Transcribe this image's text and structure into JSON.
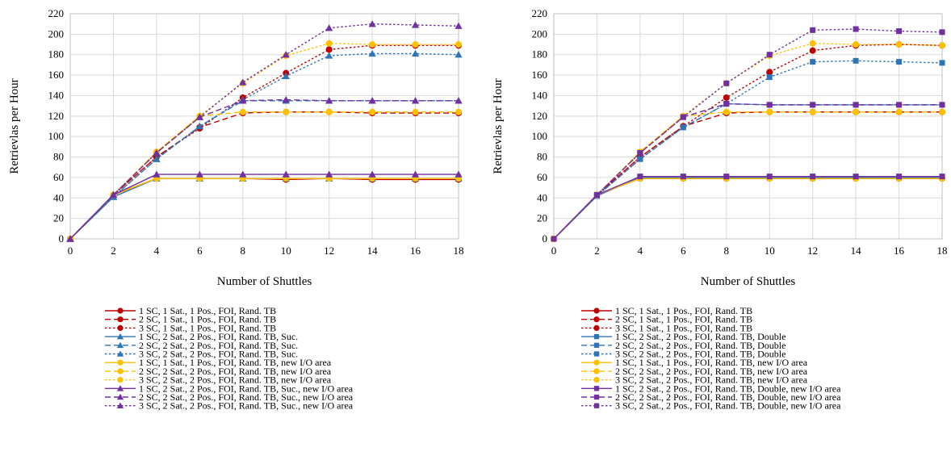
{
  "chart_data": [
    {
      "type": "line",
      "title": "",
      "xlabel": "Number of Shuttles",
      "ylabel": "Retrievlas per Hour",
      "xlim": [
        0,
        18
      ],
      "ylim": [
        0,
        220
      ],
      "x": [
        0,
        2,
        4,
        6,
        8,
        10,
        12,
        14,
        16,
        18
      ],
      "xticks": [
        "0",
        "2",
        "4",
        "6",
        "8",
        "10",
        "12",
        "14",
        "16",
        "18"
      ],
      "yticks": [
        "0",
        "20",
        "40",
        "60",
        "80",
        "100",
        "120",
        "140",
        "160",
        "180",
        "200",
        "220"
      ],
      "grid": true,
      "legend_position": "bottom",
      "series": [
        {
          "name": "1 SC, 1 Sat., 1 Pos., FOI, Rand. TB",
          "color": "#c00000",
          "dash": "solid",
          "marker": "circle",
          "values": [
            0,
            43,
            59,
            59,
            59,
            58,
            59,
            58,
            58,
            58
          ]
        },
        {
          "name": "2 SC, 1 Sat., 1 Pos., FOI, Rand. TB",
          "color": "#c00000",
          "dash": "dashed",
          "marker": "circle",
          "values": [
            0,
            43,
            80,
            109,
            123,
            124,
            124,
            123,
            123,
            123
          ]
        },
        {
          "name": "3 SC, 1 Sat., 1 Pos., FOI, Rand. TB",
          "color": "#c00000",
          "dash": "dotted",
          "marker": "circle",
          "values": [
            0,
            43,
            80,
            108,
            138,
            162,
            185,
            189,
            189,
            189
          ]
        },
        {
          "name": "1 SC, 2 Sat., 2 Pos., FOI, Rand. TB, Suc.",
          "color": "#2e75b6",
          "dash": "solid",
          "marker": "triangle",
          "values": [
            0,
            41,
            59,
            59,
            59,
            59,
            59,
            59,
            59,
            59
          ]
        },
        {
          "name": "2 SC, 2 Sat., 2 Pos., FOI, Rand. TB, Suc.",
          "color": "#2e75b6",
          "dash": "dashed",
          "marker": "triangle",
          "values": [
            0,
            41,
            78,
            110,
            135,
            135,
            135,
            135,
            135,
            135
          ]
        },
        {
          "name": "3 SC, 2 Sat., 2 Pos., FOI, Rand. TB, Suc.",
          "color": "#2e75b6",
          "dash": "dotted",
          "marker": "triangle",
          "values": [
            0,
            41,
            78,
            110,
            136,
            159,
            179,
            181,
            181,
            180
          ]
        },
        {
          "name": "1 SC, 1 Sat., 1 Pos., FOI, Rand. TB, new I/O area",
          "color": "#ffc000",
          "dash": "solid",
          "marker": "circle",
          "values": [
            0,
            43,
            59,
            59,
            59,
            59,
            59,
            59,
            59,
            59
          ]
        },
        {
          "name": "2 SC, 2 Sat., 2 Pos., FOI, Rand. TB, new I/O area",
          "color": "#ffc000",
          "dash": "dashed",
          "marker": "circle",
          "values": [
            0,
            43,
            85,
            120,
            124,
            124,
            124,
            124,
            124,
            124
          ]
        },
        {
          "name": "3 SC, 2 Sat., 2 Pos., FOI, Rand. TB, new I/O area",
          "color": "#ffc000",
          "dash": "dotted",
          "marker": "circle",
          "values": [
            0,
            43,
            85,
            120,
            152,
            179,
            191,
            190,
            190,
            190
          ]
        },
        {
          "name": "1 SC, 2 Sat., 2 Pos., FOI, Rand. TB, Suc., new I/O area",
          "color": "#7030a0",
          "dash": "solid",
          "marker": "triangle",
          "values": [
            0,
            43,
            63,
            63,
            63,
            63,
            63,
            63,
            63,
            63
          ]
        },
        {
          "name": "2 SC, 2 Sat., 2 Pos., FOI, Rand. TB, Suc., new I/O area",
          "color": "#7030a0",
          "dash": "dashed",
          "marker": "triangle",
          "values": [
            0,
            43,
            84,
            119,
            135,
            136,
            135,
            135,
            135,
            135
          ]
        },
        {
          "name": "3 SC, 2 Sat., 2 Pos., FOI, Rand. TB, Suc., new I/O area",
          "color": "#7030a0",
          "dash": "dotted",
          "marker": "triangle",
          "values": [
            0,
            43,
            84,
            119,
            153,
            180,
            206,
            210,
            209,
            208
          ]
        }
      ]
    },
    {
      "type": "line",
      "title": "",
      "xlabel": "Number of Shuttles",
      "ylabel": "Retrievlas per Hour",
      "xlim": [
        0,
        18
      ],
      "ylim": [
        0,
        220
      ],
      "x": [
        0,
        2,
        4,
        6,
        8,
        10,
        12,
        14,
        16,
        18
      ],
      "xticks": [
        "0",
        "2",
        "4",
        "6",
        "8",
        "10",
        "12",
        "14",
        "16",
        "18"
      ],
      "yticks": [
        "0",
        "20",
        "40",
        "60",
        "80",
        "100",
        "120",
        "140",
        "160",
        "180",
        "200",
        "220"
      ],
      "grid": true,
      "legend_position": "bottom",
      "series": [
        {
          "name": "1 SC, 1 Sat., 1 Pos., FOI, Rand. TB",
          "color": "#c00000",
          "dash": "solid",
          "marker": "circle",
          "values": [
            0,
            43,
            59,
            59,
            59,
            59,
            59,
            59,
            59,
            59
          ]
        },
        {
          "name": "2 SC, 1 Sat., 1 Pos., FOI, Rand. TB",
          "color": "#c00000",
          "dash": "dashed",
          "marker": "circle",
          "values": [
            0,
            43,
            80,
            110,
            123,
            124,
            124,
            124,
            124,
            124
          ]
        },
        {
          "name": "3 SC, 1 Sat., 1 Pos., FOI, Rand. TB",
          "color": "#c00000",
          "dash": "dotted",
          "marker": "circle",
          "values": [
            0,
            43,
            80,
            110,
            138,
            163,
            184,
            189,
            190,
            189
          ]
        },
        {
          "name": "1 SC, 2 Sat., 2 Pos., FOI, Rand. TB, Double",
          "color": "#2e75b6",
          "dash": "solid",
          "marker": "square",
          "values": [
            0,
            42,
            60,
            60,
            60,
            60,
            60,
            60,
            60,
            60
          ]
        },
        {
          "name": "2 SC, 2 Sat., 2 Pos., FOI, Rand. TB, Double",
          "color": "#2e75b6",
          "dash": "dashed",
          "marker": "square",
          "values": [
            0,
            42,
            78,
            109,
            132,
            131,
            131,
            131,
            131,
            131
          ]
        },
        {
          "name": "3 SC, 2 Sat., 2 Pos., FOI, Rand. TB, Double",
          "color": "#2e75b6",
          "dash": "dotted",
          "marker": "square",
          "values": [
            0,
            42,
            78,
            109,
            132,
            158,
            173,
            174,
            173,
            172
          ]
        },
        {
          "name": "1 SC, 1 Sat., 1 Pos., FOI, Rand. TB, new I/O area",
          "color": "#ffc000",
          "dash": "solid",
          "marker": "circle",
          "values": [
            0,
            43,
            59,
            59,
            59,
            59,
            59,
            59,
            59,
            59
          ]
        },
        {
          "name": "2 SC, 2 Sat., 2 Pos., FOI, Rand. TB, new I/O area",
          "color": "#ffc000",
          "dash": "dashed",
          "marker": "circle",
          "values": [
            0,
            43,
            85,
            120,
            124,
            124,
            124,
            124,
            124,
            124
          ]
        },
        {
          "name": "3 SC, 2 Sat., 2 Pos., FOI, Rand. TB, new I/O area",
          "color": "#ffc000",
          "dash": "dotted",
          "marker": "circle",
          "values": [
            0,
            43,
            85,
            120,
            152,
            179,
            191,
            190,
            190,
            189
          ]
        },
        {
          "name": "1 SC, 2 Sat., 2 Pos., FOI, Rand. TB, Double, new I/O area",
          "color": "#7030a0",
          "dash": "solid",
          "marker": "square",
          "values": [
            0,
            43,
            61,
            61,
            61,
            61,
            61,
            61,
            61,
            61
          ]
        },
        {
          "name": "2 SC, 2 Sat., 2 Pos., FOI, Rand. TB, Double, new I/O area",
          "color": "#7030a0",
          "dash": "dashed",
          "marker": "square",
          "values": [
            0,
            43,
            84,
            119,
            132,
            131,
            131,
            131,
            131,
            131
          ]
        },
        {
          "name": "3 SC, 2 Sat., 2 Pos., FOI, Rand. TB, Double, new I/O area",
          "color": "#7030a0",
          "dash": "dotted",
          "marker": "square",
          "values": [
            0,
            43,
            84,
            119,
            152,
            180,
            204,
            205,
            203,
            202
          ]
        }
      ]
    }
  ]
}
